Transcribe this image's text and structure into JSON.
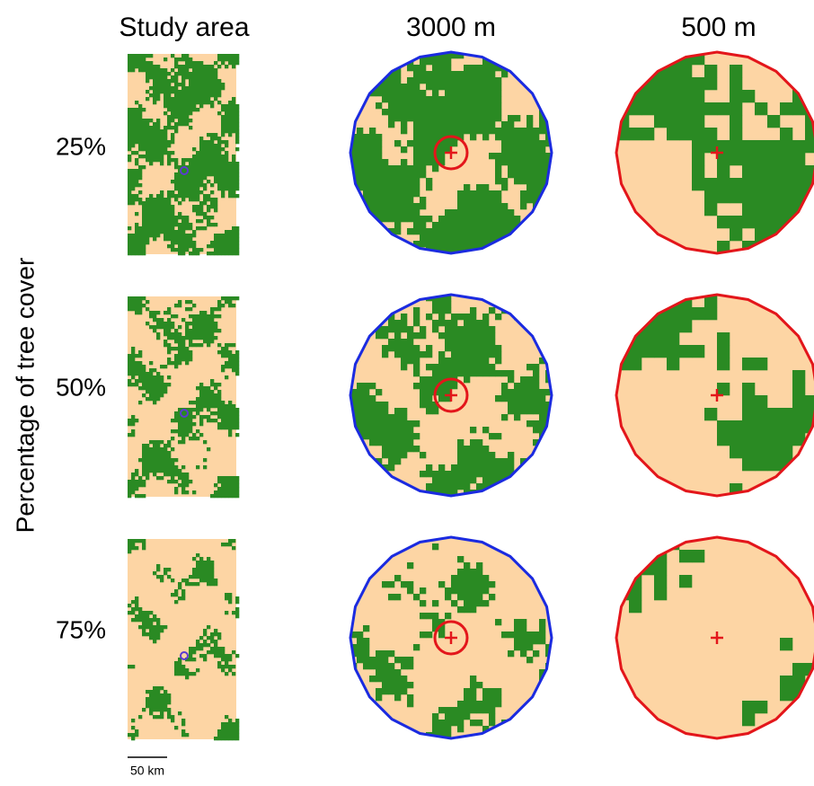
{
  "columns": [
    "Study area",
    "3000 m",
    "500 m"
  ],
  "rows": [
    "25%",
    "50%",
    "75%"
  ],
  "y_label": "Percentage of tree cover",
  "scale_bar": "50 km"
}
